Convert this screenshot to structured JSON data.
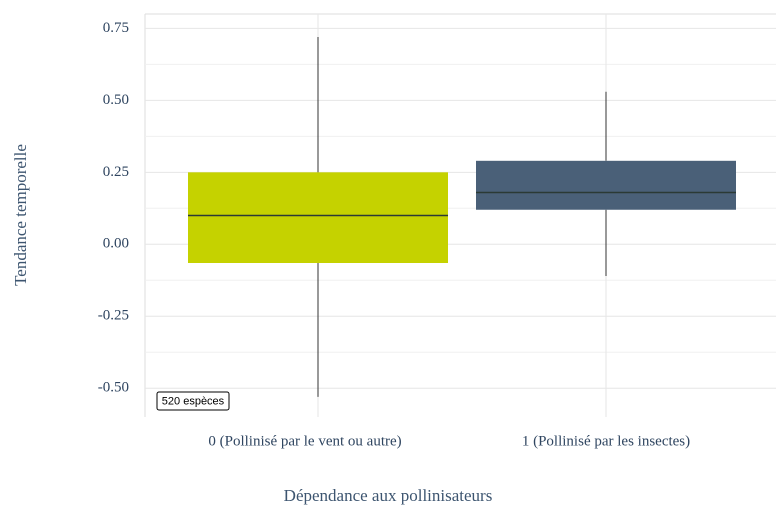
{
  "chart_data": {
    "type": "box",
    "x_label": "Dépendance aux pollinisateurs",
    "y_label": "Tendance temporelle",
    "categories": [
      "0 (Pollinisé par le vent ou autre)",
      "1 (Pollinisé par les insectes)"
    ],
    "boxes": [
      {
        "whisker_low": -0.53,
        "q1": -0.065,
        "median": 0.1,
        "q3": 0.25,
        "whisker_high": 0.72
      },
      {
        "whisker_low": -0.11,
        "q1": 0.12,
        "median": 0.18,
        "q3": 0.29,
        "whisker_high": 0.53
      }
    ],
    "colors": [
      "#c5d200",
      "#4a6078"
    ],
    "ylim": [
      -0.6,
      0.8
    ],
    "yticks": [
      {
        "value": -0.5,
        "label": "-0.50"
      },
      {
        "value": -0.25,
        "label": "-0.25"
      },
      {
        "value": 0,
        "label": "0.00"
      },
      {
        "value": 0.25,
        "label": "0.25"
      },
      {
        "value": 0.5,
        "label": "0.50"
      },
      {
        "value": 0.75,
        "label": "0.75"
      }
    ],
    "minor_yticks": [
      -0.375,
      -0.125,
      0.125,
      0.375,
      0.625
    ],
    "grid": true,
    "annotation": "520 espèces"
  }
}
